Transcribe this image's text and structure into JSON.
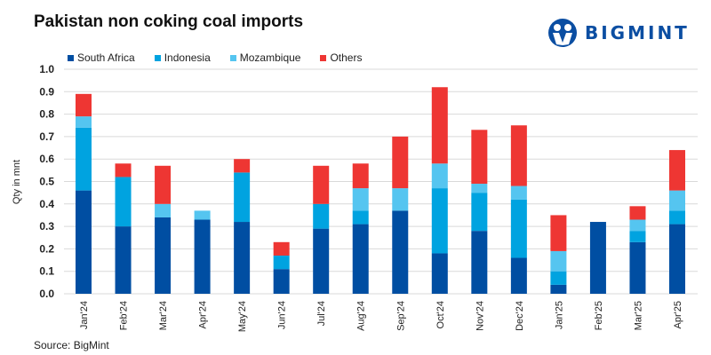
{
  "brand": {
    "name": "BIGMINT"
  },
  "chart_data": {
    "type": "bar",
    "stacked": true,
    "title": "Pakistan non coking coal imports",
    "ylabel": "Qty in mnt",
    "xlabel": "",
    "ylim": [
      0,
      1.0
    ],
    "yticks": [
      "0.0",
      "0.1",
      "0.2",
      "0.3",
      "0.4",
      "0.5",
      "0.6",
      "0.7",
      "0.8",
      "0.9",
      "1.0"
    ],
    "grid": true,
    "legend_position": "top-left",
    "categories": [
      "Jan'24",
      "Feb'24",
      "Mar'24",
      "Apr'24",
      "May'24",
      "Jun'24",
      "Jul'24",
      "Aug'24",
      "Sep'24",
      "Oct'24",
      "Nov'24",
      "Dec'24",
      "Jan'25",
      "Feb'25",
      "Mar'25",
      "Apr'25"
    ],
    "series": [
      {
        "name": "South Africa",
        "color": "#004ea2",
        "values": [
          0.46,
          0.3,
          0.34,
          0.33,
          0.32,
          0.11,
          0.29,
          0.31,
          0.37,
          0.18,
          0.28,
          0.16,
          0.04,
          0.32,
          0.23,
          0.31
        ]
      },
      {
        "name": "Indonesia",
        "color": "#00a3e0",
        "values": [
          0.28,
          0.22,
          0,
          0,
          0.22,
          0.06,
          0.11,
          0.06,
          0,
          0.29,
          0.17,
          0.26,
          0.06,
          0,
          0.05,
          0.06
        ]
      },
      {
        "name": "Mozambique",
        "color": "#55c5f0",
        "values": [
          0.05,
          0,
          0.06,
          0.04,
          0,
          0,
          0,
          0.1,
          0.1,
          0.11,
          0.04,
          0.06,
          0.09,
          0,
          0.05,
          0.09
        ]
      },
      {
        "name": "Others",
        "color": "#ee3633",
        "values": [
          0.1,
          0.06,
          0.17,
          0,
          0.06,
          0.06,
          0.17,
          0.11,
          0.23,
          0.34,
          0.24,
          0.27,
          0.16,
          0,
          0.06,
          0.18
        ]
      }
    ],
    "source": "Source: BigMint"
  }
}
